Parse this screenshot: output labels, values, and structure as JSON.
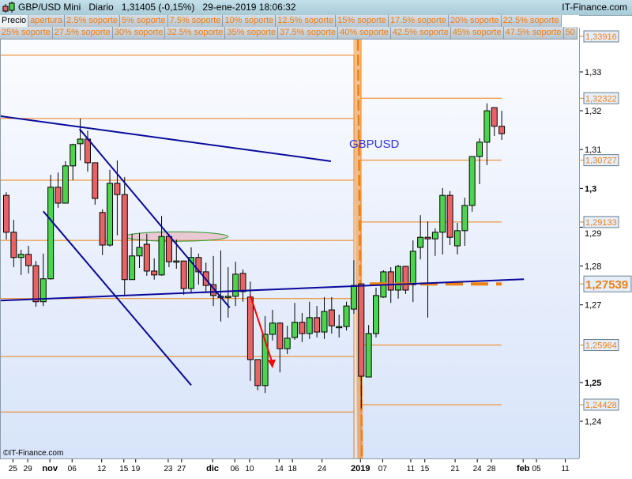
{
  "header": {
    "title": "GBP/USD Mini   Diario   1,31405 (-0,15%)   29-ene-2019 18:06:32",
    "brand": "IT-Finance.com",
    "logo_icon": "candlestick-icon"
  },
  "tabs_row1": [
    "Precio",
    "apertura",
    "2.5% soporte",
    "5% soporte",
    "7.5% soporte",
    "10% soporte",
    "12.5% soporte",
    "15% soporte",
    "17.5% soporte",
    "20% soporte",
    "22.5% soporte"
  ],
  "tabs_row2": [
    "25% soporte",
    "27.5% soporte",
    "30% soporte",
    "32.5% soporte",
    "35% soporte",
    "37.5% soporte",
    "40% soporte",
    "42.5% soporte",
    "45% soporte",
    "47.5% soporte",
    "50"
  ],
  "copyright": "©IT-Finance.com",
  "colors": {
    "up": "#4cd44c",
    "down": "#e86464",
    "level": "#f08010",
    "trend": "#0a0a9a",
    "annotation": "#3333dd",
    "arrow": "#ff0000"
  },
  "chart_data": {
    "type": "candlestick",
    "symbol_label": "GBPUSD",
    "ylim": [
      1.2306,
      1.3488
    ],
    "yticks": [
      {
        "value": 1.33,
        "label": "1,33",
        "bold": false
      },
      {
        "value": 1.32,
        "label": "1,32",
        "bold": false
      },
      {
        "value": 1.31,
        "label": "1,31",
        "bold": false
      },
      {
        "value": 1.3,
        "label": "1,3",
        "bold": true
      },
      {
        "value": 1.29,
        "label": "1,29",
        "bold": false
      },
      {
        "value": 1.28,
        "label": "1,28",
        "bold": false
      },
      {
        "value": 1.27,
        "label": "1,27",
        "bold": false
      },
      {
        "value": 1.25,
        "label": "1,25",
        "bold": true
      },
      {
        "value": 1.24,
        "label": "1,24",
        "bold": false
      }
    ],
    "xticks": [
      {
        "bar": 1,
        "label": "25"
      },
      {
        "bar": 3,
        "label": "29"
      },
      {
        "bar": 6,
        "label": "nov",
        "bold": true
      },
      {
        "bar": 9,
        "label": "06"
      },
      {
        "bar": 13,
        "label": "12"
      },
      {
        "bar": 16,
        "label": "15"
      },
      {
        "bar": 17.6,
        "label": "19"
      },
      {
        "bar": 22,
        "label": "23"
      },
      {
        "bar": 23.8,
        "label": "27"
      },
      {
        "bar": 28,
        "label": "dic",
        "bold": true
      },
      {
        "bar": 31,
        "label": "06"
      },
      {
        "bar": 33,
        "label": "10"
      },
      {
        "bar": 37,
        "label": "14"
      },
      {
        "bar": 38.8,
        "label": "18"
      },
      {
        "bar": 42.8,
        "label": "24"
      },
      {
        "bar": 48,
        "label": "2019",
        "bold": true
      },
      {
        "bar": 51,
        "label": "07"
      },
      {
        "bar": 54.8,
        "label": "11"
      },
      {
        "bar": 56.7,
        "label": "15"
      },
      {
        "bar": 60.8,
        "label": "21"
      },
      {
        "bar": 63.8,
        "label": "24"
      },
      {
        "bar": 65.7,
        "label": "28"
      },
      {
        "bar": 70,
        "label": "feb",
        "bold": true
      },
      {
        "bar": 71.8,
        "label": "05"
      },
      {
        "bar": 75.7,
        "label": "11"
      }
    ],
    "candles_ohlc": [
      [
        1.2982,
        1.299,
        1.2868,
        1.2887
      ],
      [
        1.2887,
        1.2919,
        1.2797,
        1.2822
      ],
      [
        1.2822,
        1.2842,
        1.2777,
        1.283
      ],
      [
        1.283,
        1.2852,
        1.2781,
        1.2801
      ],
      [
        1.2801,
        1.2813,
        1.2695,
        1.2708
      ],
      [
        1.2708,
        1.2832,
        1.2697,
        1.2767
      ],
      [
        1.2767,
        1.3035,
        1.2765,
        1.3003
      ],
      [
        1.3003,
        1.3041,
        1.295,
        1.2962
      ],
      [
        1.2962,
        1.307,
        1.2962,
        1.3058
      ],
      [
        1.3058,
        1.3115,
        1.3021,
        1.3113
      ],
      [
        1.3115,
        1.318,
        1.3072,
        1.3127
      ],
      [
        1.3127,
        1.3149,
        1.3043,
        1.3066
      ],
      [
        1.3066,
        1.3066,
        1.2958,
        1.2974
      ],
      [
        1.2938,
        1.2946,
        1.2828,
        1.2854
      ],
      [
        1.2854,
        1.3048,
        1.285,
        1.3013
      ],
      [
        1.3013,
        1.3072,
        1.2879,
        1.2984
      ],
      [
        1.2984,
        1.3029,
        1.2722,
        1.2765
      ],
      [
        1.2765,
        1.2883,
        1.2765,
        1.2826
      ],
      [
        1.2826,
        1.2885,
        1.2795,
        1.2848
      ],
      [
        1.2856,
        1.2883,
        1.2775,
        1.2787
      ],
      [
        1.2787,
        1.282,
        1.2765,
        1.2777
      ],
      [
        1.2777,
        1.2929,
        1.2775,
        1.2876
      ],
      [
        1.2876,
        1.2883,
        1.2797,
        1.2811
      ],
      [
        1.2813,
        1.2868,
        1.2793,
        1.2813
      ],
      [
        1.2813,
        1.2813,
        1.2726,
        1.2742
      ],
      [
        1.2742,
        1.2848,
        1.2732,
        1.2822
      ],
      [
        1.2822,
        1.2832,
        1.2752,
        1.2785
      ],
      [
        1.2785,
        1.2809,
        1.2734,
        1.275
      ],
      [
        1.2752,
        1.2826,
        1.2697,
        1.2724
      ],
      [
        1.2722,
        1.284,
        1.2657,
        1.2722
      ],
      [
        1.2722,
        1.2797,
        1.2667,
        1.2722
      ],
      [
        1.2722,
        1.2811,
        1.2697,
        1.2779
      ],
      [
        1.2781,
        1.2791,
        1.2708,
        1.2734
      ],
      [
        1.272,
        1.276,
        1.2504,
        1.2559
      ],
      [
        1.2559,
        1.2559,
        1.248,
        1.2492
      ],
      [
        1.2492,
        1.2671,
        1.2473,
        1.2624
      ],
      [
        1.2624,
        1.2687,
        1.2608,
        1.2653
      ],
      [
        1.2653,
        1.2655,
        1.2526,
        1.2587
      ],
      [
        1.2587,
        1.2646,
        1.2573,
        1.2614
      ],
      [
        1.2616,
        1.2705,
        1.261,
        1.2655
      ],
      [
        1.2655,
        1.2679,
        1.2604,
        1.2626
      ],
      [
        1.2626,
        1.2708,
        1.2612,
        1.2667
      ],
      [
        1.2667,
        1.2697,
        1.2616,
        1.263
      ],
      [
        1.263,
        1.272,
        1.2612,
        1.2683
      ],
      [
        1.2687,
        1.272,
        1.2626,
        1.2646
      ],
      [
        1.2644,
        1.2675,
        1.2616,
        1.2644
      ],
      [
        1.2644,
        1.2708,
        1.2634,
        1.2697
      ],
      [
        1.2689,
        1.2815,
        1.2677,
        1.275
      ],
      [
        1.2754,
        1.2754,
        1.2433,
        1.2516
      ],
      [
        1.2514,
        1.2648,
        1.2514,
        1.2626
      ],
      [
        1.2626,
        1.2744,
        1.2616,
        1.2724
      ],
      [
        1.272,
        1.2789,
        1.2718,
        1.2785
      ],
      [
        1.2785,
        1.2797,
        1.2705,
        1.2738
      ],
      [
        1.2738,
        1.2803,
        1.2716,
        1.2799
      ],
      [
        1.2799,
        1.2801,
        1.2728,
        1.2738
      ],
      [
        1.2752,
        1.2866,
        1.2707,
        1.2838
      ],
      [
        1.2848,
        1.2931,
        1.2817,
        1.2874
      ],
      [
        1.2874,
        1.2915,
        1.2667,
        1.287
      ],
      [
        1.287,
        1.2897,
        1.2826,
        1.2887
      ],
      [
        1.2887,
        1.3001,
        1.283,
        1.2982
      ],
      [
        1.2982,
        1.2993,
        1.2854,
        1.2874
      ],
      [
        1.2852,
        1.2911,
        1.283,
        1.2891
      ],
      [
        1.2891,
        1.2976,
        1.2852,
        1.2956
      ],
      [
        1.2956,
        1.3082,
        1.294,
        1.3082
      ],
      [
        1.3082,
        1.3129,
        1.3011,
        1.3119
      ],
      [
        1.3119,
        1.3219,
        1.306,
        1.32
      ],
      [
        1.3208,
        1.3208,
        1.3135,
        1.316
      ],
      [
        1.316,
        1.32,
        1.3125,
        1.3141
      ]
    ],
    "support_levels_left": [
      1.3343,
      1.318,
      1.3021,
      1.2866,
      1.2716,
      1.2567,
      1.2424
    ],
    "support_levels_right": [
      {
        "value": 1.33916,
        "label": "1,33916"
      },
      {
        "value": 1.32322,
        "label": "1,32322"
      },
      {
        "value": 1.30727,
        "label": "1,30727"
      },
      {
        "value": 1.29133,
        "label": "1,29133"
      },
      {
        "value": 1.25964,
        "label": "1,25964"
      },
      {
        "value": 1.24428,
        "label": "1,24428"
      }
    ],
    "current_level": {
      "value": 1.27539,
      "label": "1,27539"
    },
    "trendlines": [
      {
        "from": [
          -0.75,
          1.3186
        ],
        "to": [
          43.9,
          1.307
        ]
      },
      {
        "from": [
          9.9,
          1.3153
        ],
        "to": [
          30.2,
          1.2693
        ]
      },
      {
        "from": [
          5.0,
          1.2941
        ],
        "to": [
          25.0,
          1.2493
        ]
      },
      {
        "from": [
          -0.75,
          1.2711
        ],
        "to": [
          70.0,
          1.2766
        ]
      }
    ],
    "ellipse": {
      "center": [
        23,
        1.2876
      ],
      "bars_half_width": 7
    },
    "arrow": {
      "from": [
        33,
        1.2724
      ],
      "to": [
        36,
        1.2537
      ]
    }
  }
}
